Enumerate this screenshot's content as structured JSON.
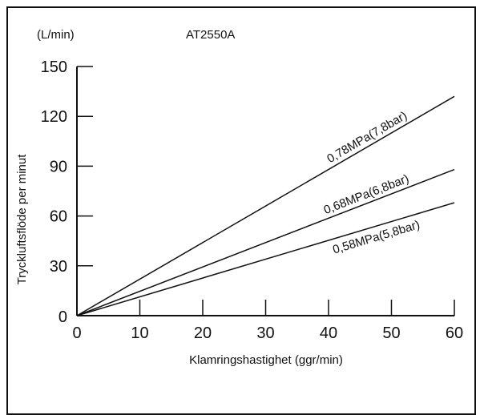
{
  "chart_data": {
    "type": "line",
    "title": "AT2550A",
    "y_unit_label": "(L/min)",
    "xlabel": "Klamringshastighet (ggr/min)",
    "ylabel": "Tryckluftsflöde per minut",
    "xlim": [
      0,
      60
    ],
    "ylim": [
      0,
      150
    ],
    "x_ticks": [
      0,
      10,
      20,
      30,
      40,
      50,
      60
    ],
    "y_ticks": [
      0,
      30,
      60,
      90,
      120,
      150
    ],
    "grid": false,
    "legend": "none",
    "series": [
      {
        "name": "0,78MPa(7,8bar)",
        "x": [
          0,
          60
        ],
        "y": [
          0,
          132
        ]
      },
      {
        "name": "0,68MPa(6,8bar)",
        "x": [
          0,
          60
        ],
        "y": [
          0,
          88
        ]
      },
      {
        "name": "0,58MPa(5,8bar)",
        "x": [
          0,
          60
        ],
        "y": [
          0,
          68
        ]
      }
    ],
    "line_color": "#111111"
  }
}
